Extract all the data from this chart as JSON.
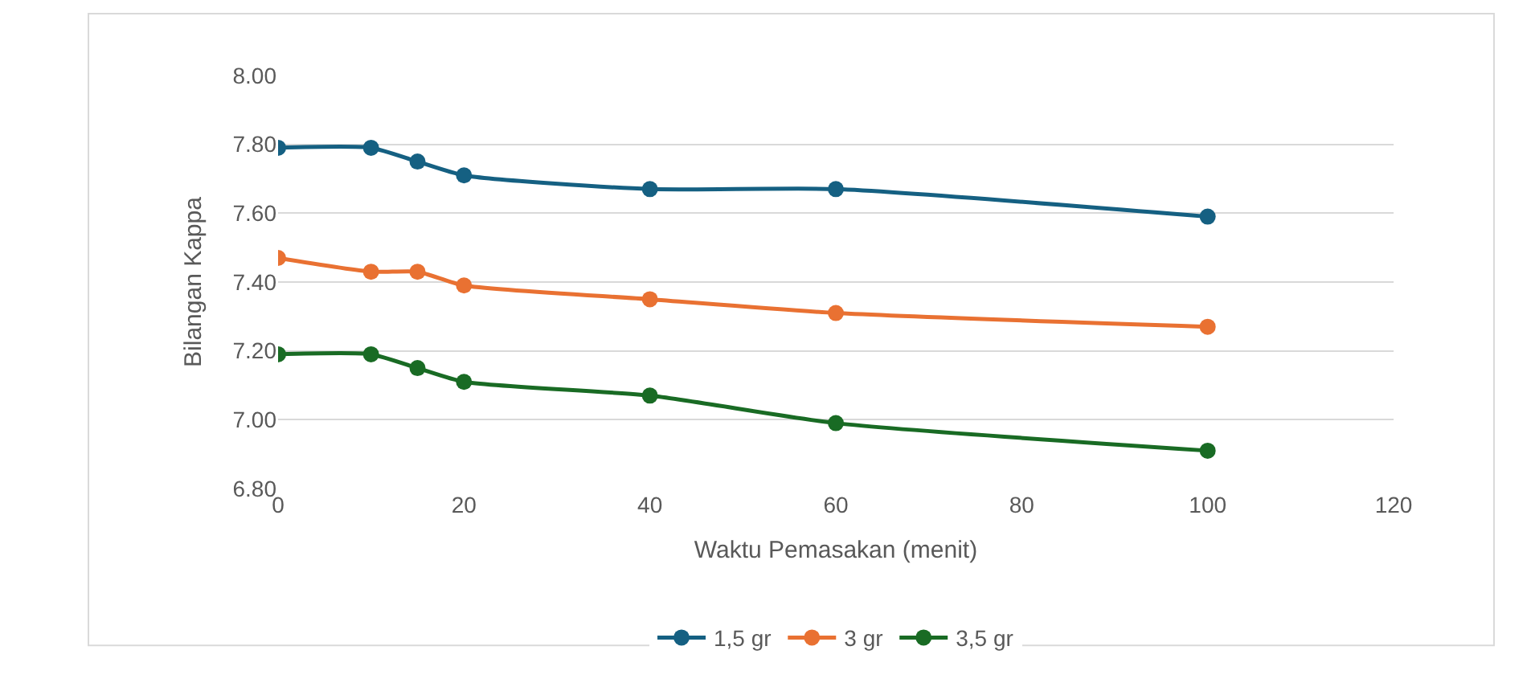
{
  "chart_data": {
    "type": "line",
    "xlabel": "Waktu Pemasakan (menit)",
    "ylabel": "Bilangan Kappa",
    "x": [
      0,
      10,
      15,
      20,
      40,
      60,
      100
    ],
    "series": [
      {
        "name": "1,5 gr",
        "color": "#156082",
        "values": [
          7.79,
          7.79,
          7.75,
          7.71,
          7.67,
          7.67,
          7.59
        ]
      },
      {
        "name": "3 gr",
        "color": "#e97132",
        "values": [
          7.47,
          7.43,
          7.43,
          7.39,
          7.35,
          7.31,
          7.27
        ]
      },
      {
        "name": "3,5 gr",
        "color": "#196b24",
        "values": [
          7.19,
          7.19,
          7.15,
          7.11,
          7.07,
          6.99,
          6.91
        ]
      }
    ],
    "xlim": [
      0,
      120
    ],
    "xticks": [
      0,
      20,
      40,
      60,
      80,
      100,
      120
    ],
    "ylim": [
      6.8,
      8.0
    ],
    "yticks": [
      {
        "value": 6.8,
        "label": "6.80"
      },
      {
        "value": 7.0,
        "label": "7.00"
      },
      {
        "value": 7.2,
        "label": "7.20"
      },
      {
        "value": 7.4,
        "label": "7.40"
      },
      {
        "value": 7.6,
        "label": "7.60"
      },
      {
        "value": 7.8,
        "label": "7.80"
      },
      {
        "value": 8.0,
        "label": "8.00"
      }
    ],
    "grid": "y",
    "legend": "bottom",
    "marker": "circle",
    "line_style": "solid"
  }
}
